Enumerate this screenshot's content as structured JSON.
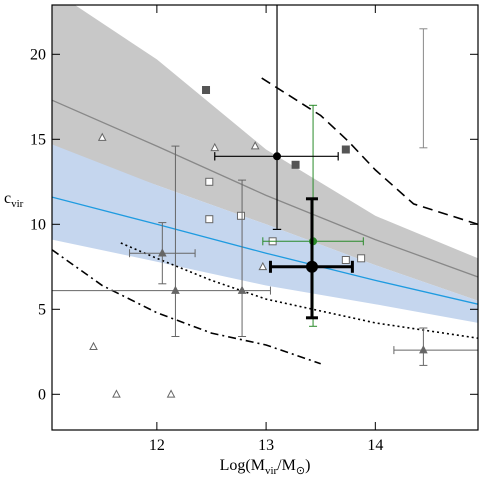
{
  "chart_data": {
    "type": "scatter",
    "xlabel": [
      "Log(M",
      "vir",
      "/M",
      "⊙",
      ")"
    ],
    "ylabel": [
      "c",
      "vir"
    ],
    "xlim": [
      11.04,
      14.94
    ],
    "ylim": [
      -2.1,
      22.9
    ],
    "xticks": [
      12,
      13,
      14
    ],
    "yticks": [
      0,
      5,
      10,
      15,
      20
    ],
    "bands": [
      {
        "color": "#c8c8c8",
        "x": [
          11.04,
          11.25,
          12,
          13,
          14,
          14.94
        ],
        "upper": [
          22.9,
          22.9,
          19.7,
          14.4,
          10.5,
          8.0
        ],
        "lower": [
          14.7,
          14.0,
          12.3,
          10.0,
          7.6,
          5.5
        ]
      },
      {
        "color": "#c5d6ee",
        "x": [
          11.04,
          12,
          13,
          14,
          14.94
        ],
        "upper": [
          14.7,
          12.3,
          10.0,
          7.6,
          5.5
        ],
        "lower": [
          9.1,
          7.8,
          6.4,
          5.3,
          4.2
        ]
      }
    ],
    "lines": [
      {
        "color": "#888888",
        "style": "solid",
        "x": [
          11.04,
          12,
          13,
          14,
          14.94
        ],
        "y": [
          17.3,
          14.6,
          11.7,
          9.1,
          6.9
        ]
      },
      {
        "color": "#1e9be0",
        "style": "solid",
        "x": [
          11.04,
          12,
          13,
          14,
          14.94
        ],
        "y": [
          11.6,
          10.0,
          8.3,
          6.7,
          5.3
        ]
      },
      {
        "color": "#000000",
        "style": "dashed",
        "x": [
          12.96,
          13.5,
          13.75,
          14,
          14.35,
          14.94
        ],
        "y": [
          18.6,
          16.4,
          14.9,
          13.2,
          11.2,
          10.0
        ]
      },
      {
        "color": "#000000",
        "style": "dashdot",
        "x": [
          11.04,
          11.5,
          12,
          12.5,
          13,
          13.5
        ],
        "y": [
          8.5,
          6.4,
          4.8,
          3.6,
          2.9,
          1.8
        ]
      },
      {
        "color": "#000000",
        "style": "dotted",
        "x": [
          11.67,
          12,
          12.5,
          13,
          13.5,
          14,
          14.94
        ],
        "y": [
          8.9,
          8.0,
          6.7,
          5.6,
          4.9,
          4.2,
          3.3
        ]
      }
    ],
    "series": [
      {
        "color": "#666666",
        "marker": "triangle",
        "filled": false,
        "size": 7,
        "x": [
          11.5,
          12.53,
          12.9,
          12.97,
          11.42,
          11.63,
          12.13
        ],
        "y": [
          15.1,
          14.5,
          14.6,
          7.5,
          2.8,
          0,
          0
        ]
      },
      {
        "color": "#666666",
        "marker": "square",
        "filled": false,
        "size": 7,
        "x": [
          12.48,
          12.48,
          12.77,
          13.06,
          13.73,
          13.87
        ],
        "y": [
          12.5,
          10.3,
          10.5,
          9.0,
          7.9,
          8.0
        ]
      },
      {
        "color": "#555555",
        "marker": "square",
        "filled": true,
        "size": 7,
        "x": [
          12.45,
          13.27,
          13.73
        ],
        "y": [
          17.9,
          13.5,
          14.4
        ]
      },
      {
        "color": "#666666",
        "marker": "triangle",
        "filled": true,
        "size": 7,
        "width": 1,
        "x": [
          12.05,
          12.17,
          12.78,
          14.44
        ],
        "y": [
          8.3,
          6.1,
          6.1,
          2.6
        ],
        "xerr_minus": [
          0.3,
          1.13,
          null,
          0.27
        ],
        "xerr_plus": [
          0.3,
          0.87,
          null,
          0.5
        ],
        "yerr_minus": [
          1.8,
          2.7,
          2.7,
          0.9
        ],
        "yerr_plus": [
          1.8,
          8.5,
          6.5,
          1.3
        ]
      },
      {
        "color": "#888888",
        "marker": "none",
        "width": 1,
        "x": [
          14.44
        ],
        "y": [
          18.0
        ],
        "yerr_minus": [
          3.5
        ],
        "yerr_plus": [
          3.5
        ]
      },
      {
        "color": "#2a8a2a",
        "marker": "circle",
        "filled": true,
        "size": 7,
        "width": 1,
        "x": [
          13.43
        ],
        "y": [
          9.0
        ],
        "xerr_minus": [
          0.46
        ],
        "xerr_plus": [
          0.46
        ],
        "yerr_minus": [
          5.0
        ],
        "yerr_plus": [
          8.0
        ]
      },
      {
        "color": "#000000",
        "marker": "circle",
        "filled": true,
        "size": 7,
        "width": 1.2,
        "x": [
          13.1
        ],
        "y": [
          14.0
        ],
        "xerr_minus": [
          0.57
        ],
        "xerr_plus": [
          0.56
        ],
        "yerr_minus": [
          4.3
        ],
        "yerr_plus": [
          9.0
        ]
      },
      {
        "color": "#000000",
        "marker": "circle",
        "filled": true,
        "size": 11,
        "width": 3,
        "x": [
          13.42
        ],
        "y": [
          7.5
        ],
        "xerr_minus": [
          0.38
        ],
        "xerr_plus": [
          0.37
        ],
        "yerr_minus": [
          3.0
        ],
        "yerr_plus": [
          4.0
        ]
      }
    ]
  }
}
